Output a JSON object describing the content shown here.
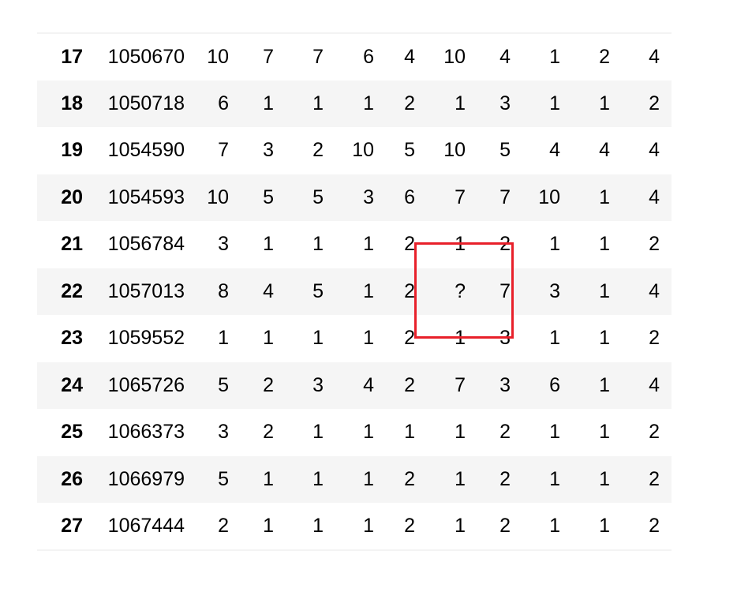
{
  "table": {
    "rows": [
      {
        "index": "17",
        "cells": [
          "1050670",
          "10",
          "7",
          "7",
          "6",
          "4",
          "10",
          "4",
          "1",
          "2",
          "4"
        ]
      },
      {
        "index": "18",
        "cells": [
          "1050718",
          "6",
          "1",
          "1",
          "1",
          "2",
          "1",
          "3",
          "1",
          "1",
          "2"
        ]
      },
      {
        "index": "19",
        "cells": [
          "1054590",
          "7",
          "3",
          "2",
          "10",
          "5",
          "10",
          "5",
          "4",
          "4",
          "4"
        ]
      },
      {
        "index": "20",
        "cells": [
          "1054593",
          "10",
          "5",
          "5",
          "3",
          "6",
          "7",
          "7",
          "10",
          "1",
          "4"
        ]
      },
      {
        "index": "21",
        "cells": [
          "1056784",
          "3",
          "1",
          "1",
          "1",
          "2",
          "1",
          "2",
          "1",
          "1",
          "2"
        ]
      },
      {
        "index": "22",
        "cells": [
          "1057013",
          "8",
          "4",
          "5",
          "1",
          "2",
          "?",
          "7",
          "3",
          "1",
          "4"
        ]
      },
      {
        "index": "23",
        "cells": [
          "1059552",
          "1",
          "1",
          "1",
          "1",
          "2",
          "1",
          "3",
          "1",
          "1",
          "2"
        ]
      },
      {
        "index": "24",
        "cells": [
          "1065726",
          "5",
          "2",
          "3",
          "4",
          "2",
          "7",
          "3",
          "6",
          "1",
          "4"
        ]
      },
      {
        "index": "25",
        "cells": [
          "1066373",
          "3",
          "2",
          "1",
          "1",
          "1",
          "1",
          "2",
          "1",
          "1",
          "2"
        ]
      },
      {
        "index": "26",
        "cells": [
          "1066979",
          "5",
          "1",
          "1",
          "1",
          "2",
          "1",
          "2",
          "1",
          "1",
          "2"
        ]
      },
      {
        "index": "27",
        "cells": [
          "1067444",
          "2",
          "1",
          "1",
          "1",
          "2",
          "1",
          "2",
          "1",
          "1",
          "2"
        ]
      }
    ]
  },
  "highlight": {
    "color": "#e8202a"
  }
}
